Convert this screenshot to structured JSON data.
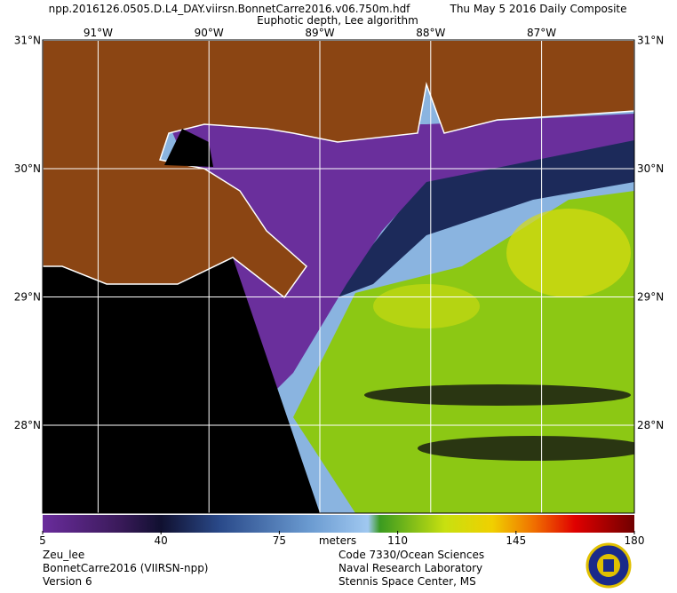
{
  "header": {
    "file": "npp.2016126.0505.D.L4_DAY.viirsn.BonnetCarre2016.v06.750m.hdf",
    "date": "Thu May  5 2016 Daily Composite",
    "product": "Euphotic depth, Lee algorithm"
  },
  "grid": {
    "longitudes": [
      {
        "value": -91,
        "label": "91°W"
      },
      {
        "value": -90,
        "label": "90°W"
      },
      {
        "value": -89,
        "label": "89°W"
      },
      {
        "value": -88,
        "label": "88°W"
      },
      {
        "value": -87,
        "label": "87°W"
      }
    ],
    "latitudes": [
      {
        "value": 31,
        "label": "31°N"
      },
      {
        "value": 30,
        "label": "30°N"
      },
      {
        "value": 29,
        "label": "29°N"
      },
      {
        "value": 28,
        "label": "28°N"
      }
    ]
  },
  "colorbar": {
    "range": [
      5,
      180
    ],
    "ticks": [
      5,
      40,
      75,
      110,
      145,
      180
    ],
    "unit": "meters"
  },
  "footer": {
    "left": [
      "Zeu_lee",
      "BonnetCarre2016 (VIIRSN-npp)",
      "Version 6"
    ],
    "right": [
      "Code 7330/Ocean Sciences",
      "Naval Research Laboratory",
      "Stennis Space Center, MS"
    ]
  }
}
